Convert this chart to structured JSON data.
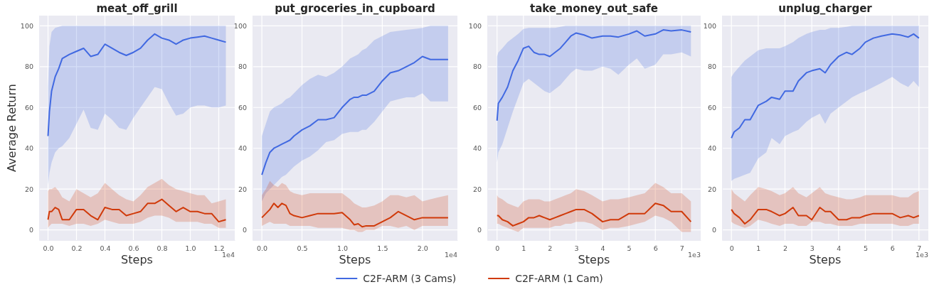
{
  "chart_data": [
    {
      "type": "line",
      "title": "meat_off_grill",
      "xlabel": "Steps",
      "ylabel": "Average Return",
      "annotations": [
        "1e4"
      ],
      "grid": true,
      "legend": "bottom",
      "xlim": [
        -0.0625,
        1.3125
      ],
      "ylim": [
        -5,
        105
      ],
      "xticks": [
        {
          "value": 0,
          "label": "0.0"
        },
        0.2,
        0.4,
        0.6,
        0.8,
        {
          "value": 1,
          "label": "1.0"
        },
        1.2
      ],
      "yticks": [
        0,
        20,
        40,
        60,
        80,
        100
      ],
      "x": [
        0,
        0.01,
        0.025,
        0.05,
        0.075,
        0.1,
        0.15,
        0.2,
        0.25,
        0.3,
        0.35,
        0.4,
        0.45,
        0.5,
        0.55,
        0.6,
        0.65,
        0.7,
        0.75,
        0.8,
        0.85,
        0.9,
        0.95,
        1.0,
        1.05,
        1.1,
        1.15,
        1.2,
        1.25
      ],
      "series": [
        {
          "name": "C2F-ARM (3 Cams)",
          "color": "#4169e1",
          "values": [
            46,
            58,
            68,
            75,
            79,
            84,
            86,
            87.5,
            89,
            85,
            86,
            91,
            89,
            87,
            85.5,
            87,
            89,
            93,
            96,
            94,
            93,
            91,
            93,
            94,
            94.5,
            95,
            94,
            93,
            92
          ],
          "lower": [
            22,
            28,
            33,
            38,
            40,
            41,
            45,
            52,
            59,
            50,
            49,
            57,
            54,
            50,
            49,
            55,
            60,
            65,
            70,
            69,
            62,
            56,
            57,
            60,
            61,
            61,
            60,
            60,
            61
          ],
          "upper": [
            70,
            90,
            97,
            99,
            99.5,
            100,
            100,
            100,
            100,
            100,
            100,
            100,
            100,
            100,
            100,
            100,
            100,
            100,
            100,
            100,
            100,
            100,
            100,
            100,
            100,
            100,
            100,
            100,
            100
          ]
        },
        {
          "name": "C2F-ARM (1 Cam)",
          "color": "#d03a0a",
          "values": [
            5,
            9,
            9,
            11,
            10,
            5,
            5,
            10,
            10,
            7,
            5,
            11,
            10,
            10,
            7,
            8,
            9,
            13,
            13,
            15,
            12,
            9,
            11,
            9,
            9,
            8,
            8,
            4,
            5
          ],
          "lower": [
            1,
            2,
            3,
            3,
            3,
            3,
            2,
            3,
            3,
            2,
            3,
            5,
            4,
            3,
            3,
            3,
            4,
            6,
            7,
            7,
            6,
            4,
            4,
            4,
            4,
            3,
            3,
            1,
            1
          ],
          "upper": [
            19,
            20,
            20,
            21,
            19,
            16,
            14,
            20,
            18,
            16,
            18,
            23,
            20,
            17,
            15,
            14,
            17,
            21,
            23,
            25,
            22,
            20,
            19,
            18,
            17,
            17,
            13,
            14,
            15
          ]
        }
      ]
    },
    {
      "type": "line",
      "title": "put_groceries_in_cupboard",
      "xlabel": "Steps",
      "annotations": [
        "1e4"
      ],
      "grid": true,
      "xlim": [
        -0.116,
        2.436
      ],
      "ylim": [
        -5,
        105
      ],
      "xticks": [
        {
          "value": 0,
          "label": "0.0"
        },
        0.5,
        {
          "value": 1,
          "label": "1.0"
        },
        1.5,
        {
          "value": 2,
          "label": "2.0"
        }
      ],
      "yticks": [
        0,
        20,
        40,
        60,
        80,
        100
      ],
      "x": [
        0,
        0.05,
        0.1,
        0.15,
        0.2,
        0.25,
        0.3,
        0.35,
        0.4,
        0.5,
        0.6,
        0.7,
        0.8,
        0.9,
        1.0,
        1.1,
        1.15,
        1.2,
        1.25,
        1.3,
        1.4,
        1.5,
        1.6,
        1.7,
        1.8,
        1.9,
        2.0,
        2.1,
        2.2,
        2.32
      ],
      "series": [
        {
          "color": "#4169e1",
          "values": [
            27,
            33,
            38,
            40,
            41,
            42,
            43,
            44,
            46,
            49,
            51,
            54,
            54,
            55,
            60,
            64,
            65,
            65,
            66,
            66,
            68,
            73,
            77,
            78,
            80,
            82,
            85,
            83.5,
            83.5,
            83.5
          ],
          "lower": [
            14,
            18,
            20,
            22,
            24,
            26,
            27,
            29,
            31,
            34,
            36,
            39,
            43,
            44,
            47,
            48,
            48,
            48,
            49,
            49,
            53,
            58,
            63,
            64,
            65,
            65,
            67,
            63,
            63,
            63
          ],
          "upper": [
            46,
            52,
            58,
            60,
            61,
            62,
            64,
            65,
            67,
            71,
            74,
            76,
            75,
            77,
            80,
            84,
            85,
            86,
            88,
            89,
            93,
            95,
            97,
            97.5,
            98,
            98.5,
            99,
            100,
            100,
            100
          ]
        },
        {
          "color": "#d03a0a",
          "values": [
            6,
            8,
            10,
            13,
            11,
            13,
            12,
            8,
            7,
            6,
            7,
            8,
            8,
            8,
            8.5,
            5,
            2.5,
            3,
            1.5,
            2,
            2,
            4,
            6,
            9,
            7,
            5,
            6,
            6,
            6,
            6
          ],
          "lower": [
            2,
            3,
            4,
            3,
            3,
            3,
            3,
            2,
            2,
            2,
            2,
            1,
            1,
            1,
            1,
            0,
            0,
            -1,
            -1,
            0,
            0,
            2,
            2,
            1,
            2,
            0,
            2,
            2,
            2,
            2
          ],
          "upper": [
            17,
            20,
            24,
            22,
            21,
            23,
            22,
            19,
            18,
            17,
            18,
            18,
            18,
            18,
            18,
            15,
            13,
            12,
            11,
            11,
            12,
            14,
            17,
            17,
            16,
            17,
            14,
            15,
            16,
            17
          ]
        }
      ]
    },
    {
      "type": "line",
      "title": "take_money_out_safe",
      "xlabel": "Steps",
      "annotations": [
        "1e3"
      ],
      "grid": true,
      "xlim": [
        -0.37,
        7.72
      ],
      "ylim": [
        -5,
        105
      ],
      "xticks": [
        0,
        1,
        2,
        3,
        4,
        5,
        6,
        7
      ],
      "yticks": [
        0,
        20,
        40,
        60,
        80,
        100
      ],
      "x": [
        0,
        0.05,
        0.2,
        0.4,
        0.6,
        0.8,
        1,
        1.2,
        1.4,
        1.6,
        1.8,
        2,
        2.2,
        2.4,
        2.6,
        2.8,
        3,
        3.3,
        3.6,
        4,
        4.3,
        4.6,
        5,
        5.3,
        5.6,
        6,
        6.3,
        6.6,
        7,
        7.35
      ],
      "series": [
        {
          "color": "#4169e1",
          "values": [
            53.5,
            62,
            65,
            70,
            78,
            83,
            89,
            90,
            87,
            86,
            86,
            85,
            87,
            89,
            92,
            95,
            96.5,
            95.5,
            94,
            95,
            95,
            94.5,
            96,
            97.5,
            95,
            96,
            98,
            97.5,
            98,
            97
          ],
          "lower": [
            33,
            38,
            42,
            50,
            58,
            65,
            72,
            74,
            72,
            70,
            68,
            67,
            69,
            71,
            74,
            77,
            79,
            78,
            78,
            80,
            79,
            76,
            81,
            84,
            79,
            81,
            86,
            86,
            87,
            85
          ],
          "upper": [
            85,
            87,
            89,
            92,
            94,
            96,
            98.5,
            99,
            99,
            99,
            99,
            99,
            99,
            99.5,
            100,
            100,
            100,
            100,
            100,
            100,
            100,
            100,
            100,
            100,
            100,
            100,
            100,
            100,
            100,
            100
          ]
        },
        {
          "color": "#d03a0a",
          "values": [
            7,
            7,
            5,
            4,
            2,
            3,
            4,
            6,
            6,
            7,
            6,
            5,
            6,
            7,
            8,
            9,
            10,
            10,
            8,
            4,
            5,
            5,
            8,
            8,
            8,
            13,
            12,
            9,
            9,
            4
          ],
          "lower": [
            3,
            3,
            2,
            1,
            0,
            -1,
            1,
            1,
            1,
            1,
            1,
            1,
            2,
            2,
            3,
            3,
            4,
            4,
            3,
            0,
            1,
            1,
            2,
            3,
            4,
            7,
            6,
            4,
            -1,
            -1
          ],
          "upper": [
            17,
            16,
            15,
            13,
            12,
            11,
            14,
            15,
            15,
            15,
            14,
            14,
            15,
            16,
            17,
            18,
            20,
            19,
            17,
            14,
            15,
            15,
            16,
            17,
            18,
            23,
            21,
            18,
            18,
            14
          ]
        }
      ]
    },
    {
      "type": "line",
      "title": "unplug_charger",
      "xlabel": "Steps",
      "annotations": [
        "1e3"
      ],
      "grid": true,
      "xlim": [
        -0.35,
        7.35
      ],
      "ylim": [
        -5,
        105
      ],
      "xticks": [
        0,
        1,
        2,
        3,
        4,
        5,
        6,
        7
      ],
      "yticks": [
        0,
        20,
        40,
        60,
        80,
        100
      ],
      "x": [
        0,
        0.1,
        0.3,
        0.5,
        0.7,
        1,
        1.3,
        1.5,
        1.8,
        2,
        2.3,
        2.5,
        2.8,
        3,
        3.3,
        3.5,
        3.7,
        4,
        4.3,
        4.5,
        4.8,
        5,
        5.3,
        5.6,
        6,
        6.3,
        6.6,
        6.8,
        7
      ],
      "series": [
        {
          "color": "#4169e1",
          "values": [
            45,
            48,
            50,
            54,
            54,
            61,
            63,
            65,
            64,
            68,
            68,
            73,
            77,
            78,
            79,
            77,
            81,
            85,
            87,
            86,
            89,
            92,
            94,
            95,
            96,
            95.5,
            94.5,
            96,
            94
          ],
          "lower": [
            24,
            25,
            26,
            27,
            28,
            35,
            38,
            45,
            42,
            46,
            48,
            49,
            53,
            55,
            57,
            52,
            57,
            60,
            63,
            65,
            67,
            68,
            70,
            72,
            75,
            72,
            70,
            73,
            70
          ],
          "upper": [
            75,
            77,
            80,
            83,
            85,
            88,
            89,
            89,
            89,
            90,
            92,
            94,
            96,
            97,
            98,
            98,
            99,
            99,
            99.5,
            100,
            100,
            100,
            100,
            100,
            100,
            100,
            100,
            100,
            100
          ]
        },
        {
          "color": "#d03a0a",
          "values": [
            10,
            8,
            6,
            3,
            5,
            10,
            10,
            9,
            7,
            8,
            11,
            7,
            7,
            5,
            11,
            9,
            9,
            5,
            5,
            6,
            6,
            7,
            8,
            8,
            8,
            6,
            7,
            6,
            7
          ],
          "lower": [
            4,
            3,
            2,
            1,
            2,
            5,
            4,
            3,
            2,
            3,
            3,
            2,
            2,
            4,
            4,
            3,
            3,
            2,
            2,
            2,
            3,
            3,
            3,
            3,
            3,
            2,
            2,
            3,
            3
          ],
          "upper": [
            20,
            18,
            16,
            14,
            17,
            21,
            20,
            19,
            17,
            18,
            21,
            18,
            16,
            18,
            21,
            18,
            17,
            16,
            15,
            15,
            16,
            17,
            17,
            17,
            17,
            16,
            16,
            18,
            19
          ]
        }
      ]
    }
  ]
}
